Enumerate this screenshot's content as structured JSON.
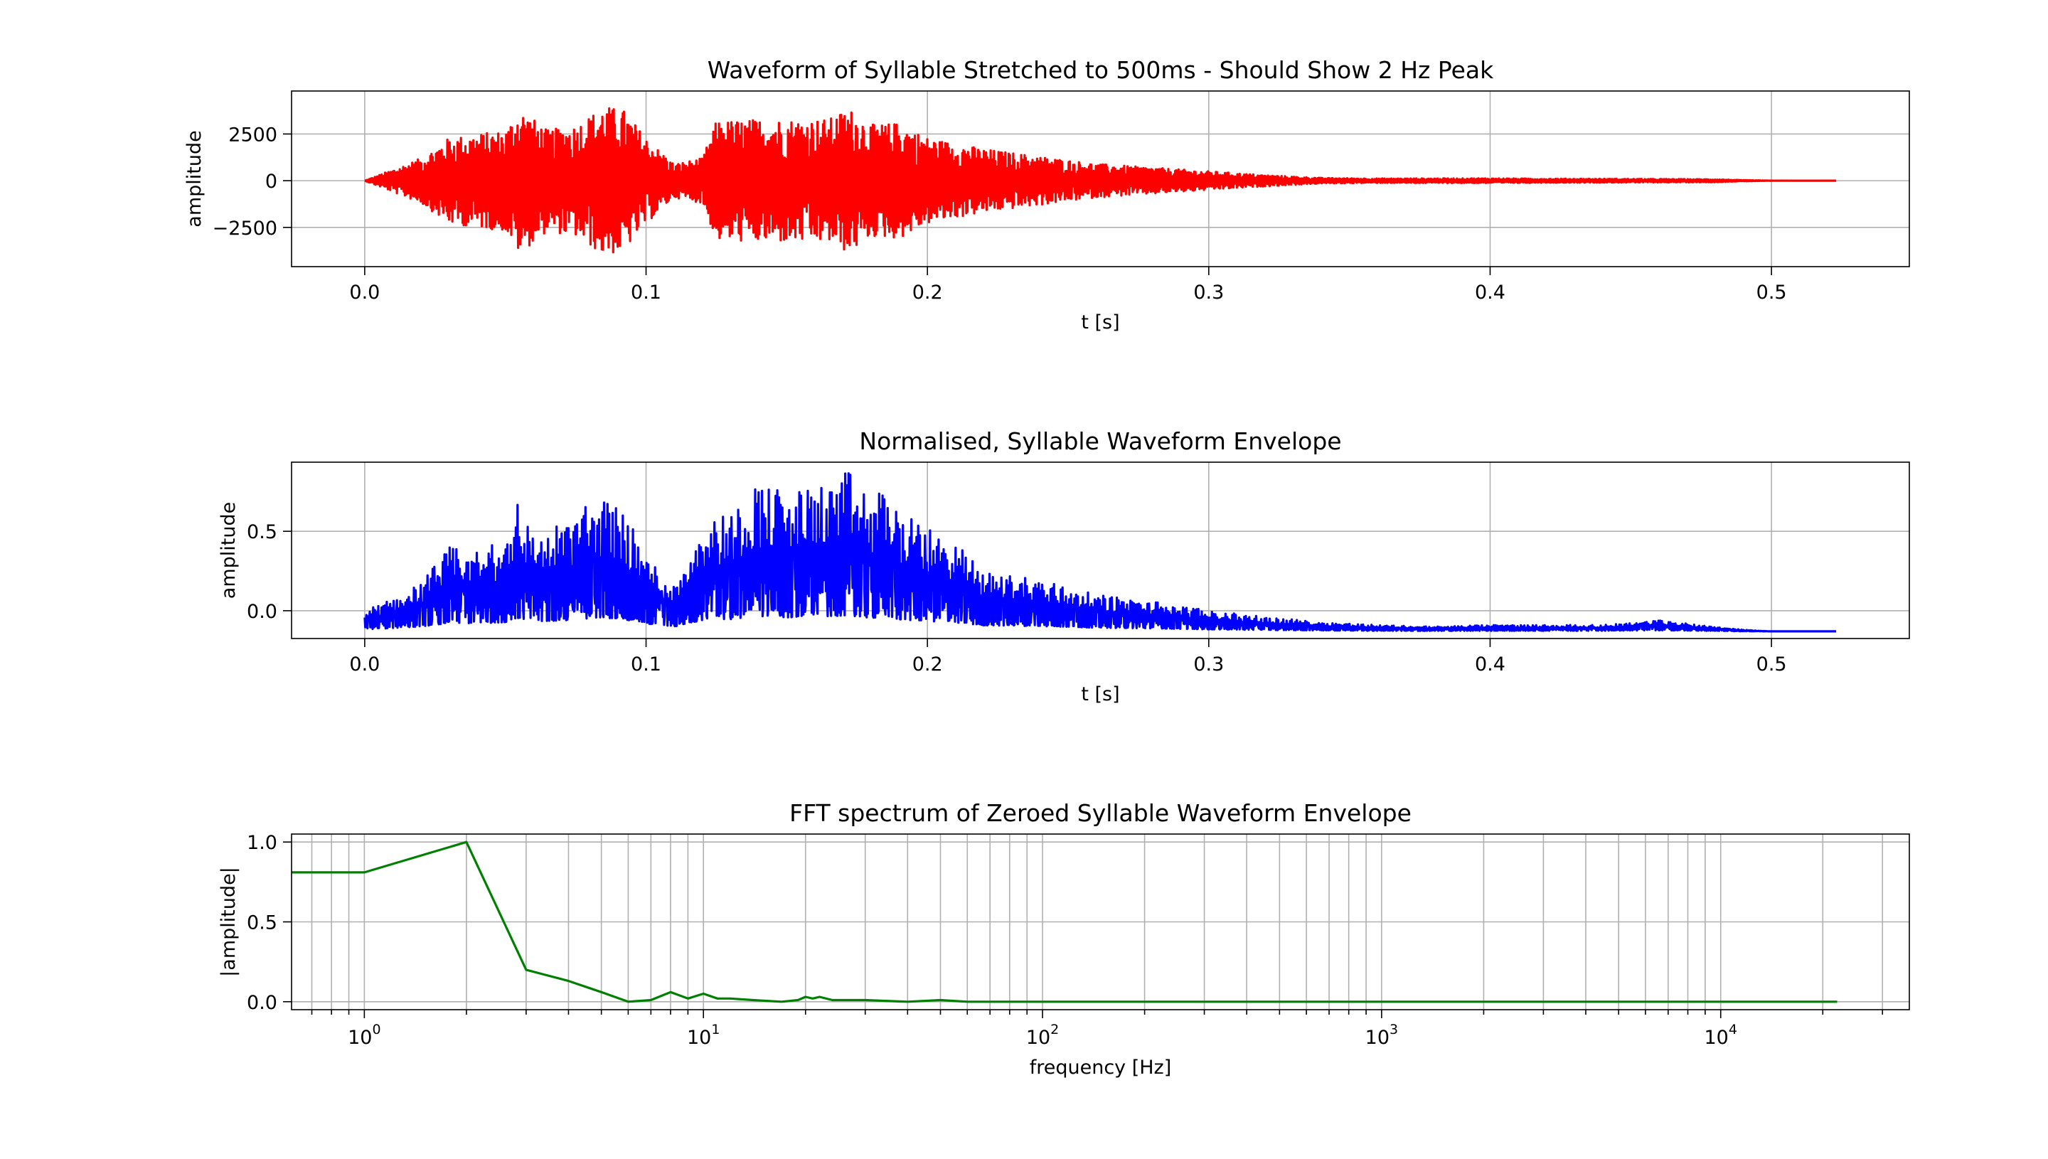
{
  "chart_data": [
    {
      "type": "line",
      "title": "Waveform of Syllable Stretched to 500ms - Should Show 2 Hz Peak",
      "xlabel": "t [s]",
      "ylabel": "amplitude",
      "xlim": [
        -0.026,
        0.549
      ],
      "ylim": [
        -4600,
        4800
      ],
      "xticks": [
        0.0,
        0.1,
        0.2,
        0.3,
        0.4,
        0.5
      ],
      "xtick_labels": [
        "0.0",
        "0.1",
        "0.2",
        "0.3",
        "0.4",
        "0.5"
      ],
      "yticks": [
        2500,
        0,
        -2500
      ],
      "ytick_labels": [
        "2500",
        "0",
        "−2500"
      ],
      "grid": true,
      "series": [
        {
          "color": "#ff0000",
          "signal": "oscillating waveform (symmetric about zero)",
          "x_end": 0.523,
          "envelope": [
            [
              0.0,
              0
            ],
            [
              0.01,
              600
            ],
            [
              0.02,
              1200
            ],
            [
              0.03,
              2300
            ],
            [
              0.05,
              2700
            ],
            [
              0.055,
              3900
            ],
            [
              0.065,
              2700
            ],
            [
              0.075,
              3000
            ],
            [
              0.085,
              4000
            ],
            [
              0.092,
              3800
            ],
            [
              0.1,
              2300
            ],
            [
              0.11,
              900
            ],
            [
              0.12,
              1200
            ],
            [
              0.125,
              3200
            ],
            [
              0.14,
              3300
            ],
            [
              0.15,
              3300
            ],
            [
              0.165,
              3300
            ],
            [
              0.172,
              3900
            ],
            [
              0.18,
              3000
            ],
            [
              0.19,
              3100
            ],
            [
              0.2,
              2300
            ],
            [
              0.21,
              2000
            ],
            [
              0.22,
              1700
            ],
            [
              0.24,
              1300
            ],
            [
              0.26,
              900
            ],
            [
              0.28,
              700
            ],
            [
              0.3,
              500
            ],
            [
              0.32,
              300
            ],
            [
              0.34,
              150
            ],
            [
              0.36,
              120
            ],
            [
              0.4,
              130
            ],
            [
              0.42,
              110
            ],
            [
              0.45,
              100
            ],
            [
              0.48,
              80
            ],
            [
              0.49,
              30
            ],
            [
              0.5,
              5
            ],
            [
              0.523,
              0
            ]
          ]
        }
      ]
    },
    {
      "type": "line",
      "title": "Normalised, Syllable Waveform Envelope",
      "xlabel": "t [s]",
      "ylabel": "amplitude",
      "xlim": [
        -0.026,
        0.549
      ],
      "ylim": [
        -0.175,
        0.935
      ],
      "xticks": [
        0.0,
        0.1,
        0.2,
        0.3,
        0.4,
        0.5
      ],
      "xtick_labels": [
        "0.0",
        "0.1",
        "0.2",
        "0.3",
        "0.4",
        "0.5"
      ],
      "yticks": [
        0.5,
        0.0
      ],
      "ytick_labels": [
        "0.5",
        "0.0"
      ],
      "grid": true,
      "series": [
        {
          "color": "#0000ff",
          "signal": "rectified envelope above baseline",
          "baseline": -0.13,
          "x_end": 0.523,
          "peaks": [
            [
              0.0,
              0.0
            ],
            [
              0.01,
              0.08
            ],
            [
              0.02,
              0.18
            ],
            [
              0.03,
              0.4
            ],
            [
              0.04,
              0.38
            ],
            [
              0.05,
              0.45
            ],
            [
              0.054,
              0.73
            ],
            [
              0.06,
              0.48
            ],
            [
              0.07,
              0.55
            ],
            [
              0.08,
              0.7
            ],
            [
              0.09,
              0.7
            ],
            [
              0.1,
              0.35
            ],
            [
              0.11,
              0.16
            ],
            [
              0.12,
              0.58
            ],
            [
              0.13,
              0.62
            ],
            [
              0.14,
              0.82
            ],
            [
              0.15,
              0.75
            ],
            [
              0.16,
              0.78
            ],
            [
              0.172,
              0.88
            ],
            [
              0.18,
              0.7
            ],
            [
              0.185,
              0.82
            ],
            [
              0.19,
              0.62
            ],
            [
              0.2,
              0.52
            ],
            [
              0.21,
              0.43
            ],
            [
              0.22,
              0.25
            ],
            [
              0.24,
              0.2
            ],
            [
              0.26,
              0.1
            ],
            [
              0.28,
              0.06
            ],
            [
              0.3,
              0.0
            ],
            [
              0.32,
              -0.04
            ],
            [
              0.34,
              -0.07
            ],
            [
              0.36,
              -0.09
            ],
            [
              0.38,
              -0.1
            ],
            [
              0.4,
              -0.09
            ],
            [
              0.44,
              -0.09
            ],
            [
              0.46,
              -0.06
            ],
            [
              0.48,
              -0.1
            ],
            [
              0.49,
              -0.12
            ],
            [
              0.5,
              -0.13
            ],
            [
              0.523,
              -0.13
            ]
          ]
        }
      ]
    },
    {
      "type": "line",
      "title": "FFT spectrum of Zeroed Syllable Waveform Envelope",
      "xlabel": "frequency [Hz]",
      "ylabel": "|amplitude|",
      "xscale": "log",
      "xlim": [
        0.61,
        36000
      ],
      "ylim": [
        -0.05,
        1.05
      ],
      "xticks": [
        1,
        10,
        100,
        1000,
        10000
      ],
      "xtick_labels": [
        {
          "base": "10",
          "exp": "0"
        },
        {
          "base": "10",
          "exp": "1"
        },
        {
          "base": "10",
          "exp": "2"
        },
        {
          "base": "10",
          "exp": "3"
        },
        {
          "base": "10",
          "exp": "4"
        }
      ],
      "yticks": [
        1.0,
        0.5,
        0.0
      ],
      "ytick_labels": [
        "1.0",
        "0.5",
        "0.0"
      ],
      "grid": true,
      "series": [
        {
          "color": "#008000",
          "x": [
            0.61,
            1,
            2,
            3,
            4,
            5,
            6,
            7,
            8,
            9,
            10,
            11,
            12,
            14,
            17,
            19,
            20,
            21,
            22,
            24,
            26,
            30,
            40,
            50,
            60,
            100,
            200,
            1000,
            10000,
            22050
          ],
          "y": [
            0.81,
            0.81,
            1.0,
            0.2,
            0.13,
            0.06,
            0.0,
            0.01,
            0.06,
            0.02,
            0.05,
            0.02,
            0.02,
            0.01,
            0.0,
            0.01,
            0.03,
            0.02,
            0.03,
            0.01,
            0.01,
            0.01,
            0.0,
            0.01,
            0.0,
            0.0,
            0.0,
            0.0,
            0.0,
            0.0
          ]
        }
      ]
    }
  ]
}
